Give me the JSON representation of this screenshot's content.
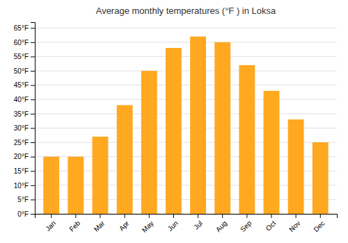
{
  "chart_data": {
    "type": "bar",
    "title": "Average monthly temperatures (°F ) in Loksa",
    "categories": [
      "Jan",
      "Feb",
      "Mar",
      "Apr",
      "May",
      "Jun",
      "Jul",
      "Aug",
      "Sep",
      "Oct",
      "Nov",
      "Dec"
    ],
    "values": [
      20,
      20,
      27,
      38,
      50,
      58,
      62,
      60,
      52,
      43,
      33,
      25
    ],
    "color": "#FFA820",
    "ylim": [
      0,
      67
    ],
    "yticks": [
      {
        "value": 0,
        "label": "0°F"
      },
      {
        "value": 5,
        "label": "5°F"
      },
      {
        "value": 10,
        "label": "10°F"
      },
      {
        "value": 15,
        "label": "15°F"
      },
      {
        "value": 20,
        "label": "20°F"
      },
      {
        "value": 25,
        "label": "25°F"
      },
      {
        "value": 30,
        "label": "30°F"
      },
      {
        "value": 35,
        "label": "35°F"
      },
      {
        "value": 40,
        "label": "40°F"
      },
      {
        "value": 45,
        "label": "45°F"
      },
      {
        "value": 50,
        "label": "50°F"
      },
      {
        "value": 55,
        "label": "55°F"
      },
      {
        "value": 60,
        "label": "60°F"
      },
      {
        "value": 65,
        "label": "65°F"
      }
    ],
    "grid": true
  }
}
